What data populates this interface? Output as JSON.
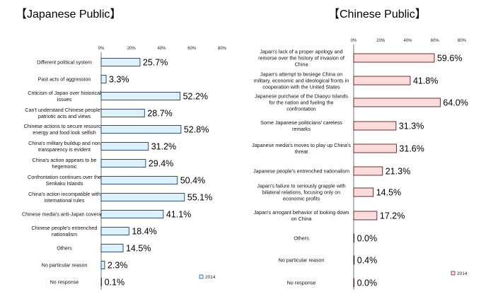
{
  "chart_data": [
    {
      "type": "bar",
      "orientation": "horizontal",
      "title": "【Japanese Public】",
      "categories": [
        [
          "Different political system"
        ],
        [
          "Past acts of aggression"
        ],
        [
          "Criticism of Japan over historical",
          "issues"
        ],
        [
          "Can't understand Chinese people's",
          "patriotic acts and views"
        ],
        [
          "Chinese actions to secure resource,",
          "energy and food look selfish"
        ],
        [
          "China's military buildup and non",
          "transparency is evident"
        ],
        [
          "China's action appears to be",
          "hegemonic"
        ],
        [
          "Confrontation continues over the",
          "Senkaku Islands"
        ],
        [
          "China's action incompatible with",
          "international rules"
        ],
        [
          "Chinese media's anti-Japan coverage"
        ],
        [
          "Chinese people's entrenched",
          "nationalism"
        ],
        [
          "Others"
        ],
        [
          "No particular reason"
        ],
        [
          "No response"
        ]
      ],
      "values": [
        25.7,
        3.3,
        52.2,
        28.7,
        52.8,
        31.2,
        29.4,
        50.4,
        55.1,
        41.1,
        18.4,
        14.5,
        2.3,
        0.1
      ],
      "value_labels": [
        "25.7%",
        "3.3%",
        "52.2%",
        "28.7%",
        "52.8%",
        "31.2%",
        "29.4%",
        "50.4%",
        "55.1%",
        "41.1%",
        "18.4%",
        "14.5%",
        "2.3%",
        "0.1%"
      ],
      "xlim": [
        0,
        80
      ],
      "ticks": [
        "0%",
        "20%",
        "40%",
        "60%",
        "80%"
      ],
      "legend": "2014",
      "bar_color": "#dff1fb",
      "bar_edge": "#1f3f66"
    },
    {
      "type": "bar",
      "orientation": "horizontal",
      "title": "【Chinese Public】",
      "categories": [
        [
          "Japan's lack of a proper apology and",
          "remorse over the history of invasion of",
          "China"
        ],
        [
          "Japan's attempt to besiege China on",
          "military, economic and ideological fronts in",
          "cooperation with the United States"
        ],
        [
          "Japanese purchase of the Diaoyu Islands",
          "for the nation and fueling the",
          "confrontation"
        ],
        [
          "Some Japanese politicians' careless",
          "remarks"
        ],
        [
          "Japanese media's moves to play up China's",
          "threat"
        ],
        [
          "Japanese people's entrenched nationalism"
        ],
        [
          "Japan's failure to seriously grapple with",
          "bilateral relations, focusing only on",
          "economic profits"
        ],
        [
          "Japan's arrogant behavior of looking down",
          "on China"
        ],
        [
          "Others"
        ],
        [
          "No particular reason"
        ],
        [
          "No response"
        ]
      ],
      "values": [
        59.6,
        41.8,
        64.0,
        31.3,
        31.6,
        21.3,
        14.5,
        17.2,
        0.0,
        0.4,
        0.0
      ],
      "value_labels": [
        "59.6%",
        "41.8%",
        "64.0%",
        "31.3%",
        "31.6%",
        "21.3%",
        "14.5%",
        "17.2%",
        "0.0%",
        "0.4%",
        "0.0%"
      ],
      "xlim": [
        0,
        80
      ],
      "ticks": [
        "0%",
        "20%",
        "40%",
        "60%",
        "80%"
      ],
      "legend": "2014",
      "bar_color": "#fbdcdc",
      "bar_edge": "#5a1a1a"
    }
  ]
}
